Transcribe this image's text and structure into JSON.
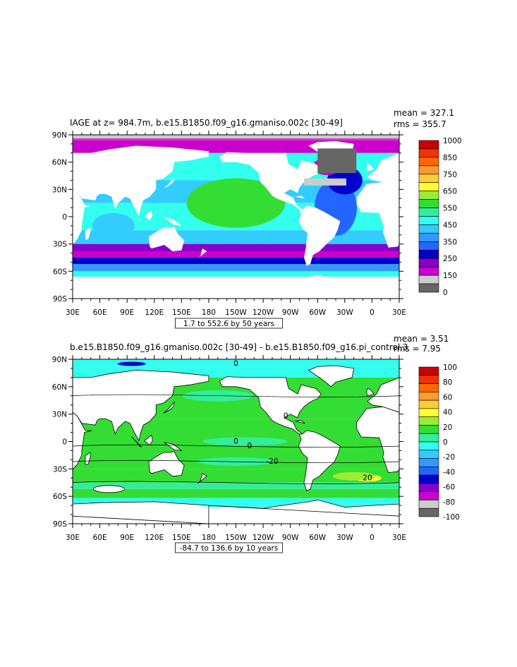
{
  "chart_data": [
    {
      "type": "heatmap",
      "title": "IAGE at z= 984.7m, b.e15.B1850.f09_g16.gmaniso.002c [30-49]",
      "stats": {
        "mean": "mean = 327.1",
        "rms": "rms = 355.7"
      },
      "x_ticks": [
        "30E",
        "60E",
        "90E",
        "120E",
        "150E",
        "180",
        "150W",
        "120W",
        "90W",
        "60W",
        "30W",
        "0",
        "30E"
      ],
      "y_ticks": [
        "90N",
        "60N",
        "30N",
        "0",
        "30S",
        "60S",
        "90S"
      ],
      "xlim": [
        30,
        390
      ],
      "ylim": [
        -90,
        90
      ],
      "range_note": "1.7 to 552.6 by 50 years",
      "colorbar": {
        "labels": [
          "1000",
          "850",
          "750",
          "650",
          "550",
          "450",
          "350",
          "250",
          "150",
          "0"
        ],
        "colors": [
          "#cc0000",
          "#ee3300",
          "#ff6600",
          "#ff9933",
          "#ffcc33",
          "#ffff33",
          "#99ee33",
          "#33dd33",
          "#33ee99",
          "#33ffee",
          "#33ccff",
          "#3399ff",
          "#2266ff",
          "#0000cc",
          "#8800cc",
          "#cc00cc",
          "#cccccc",
          "#666666"
        ]
      }
    },
    {
      "type": "heatmap",
      "title": "b.e15.B1850.f09_g16.gmaniso.002c [30-49] - b.e15.B1850.f09_g16.pi_control.3",
      "stats": {
        "mean": "mean = 3.51",
        "rms": "rms = 7.95"
      },
      "x_ticks": [
        "30E",
        "60E",
        "90E",
        "120E",
        "150E",
        "180",
        "150W",
        "120W",
        "90W",
        "60W",
        "30W",
        "0",
        "30E"
      ],
      "y_ticks": [
        "90N",
        "60N",
        "30N",
        "0",
        "30S",
        "60S",
        "90S"
      ],
      "xlim": [
        30,
        390
      ],
      "ylim": [
        -90,
        90
      ],
      "range_note": "-84.7 to 136.6 by 10 years",
      "colorbar": {
        "labels": [
          "100",
          "80",
          "60",
          "40",
          "20",
          "0",
          "-20",
          "-40",
          "-60",
          "-80",
          "-100"
        ],
        "colors": [
          "#cc0000",
          "#ee3300",
          "#ff6600",
          "#ff9933",
          "#ffcc33",
          "#ffff33",
          "#99ee33",
          "#33dd33",
          "#33ee99",
          "#33ffee",
          "#33ccff",
          "#3399ff",
          "#2266ff",
          "#0000cc",
          "#8800cc",
          "#cc00cc",
          "#cccccc",
          "#666666"
        ]
      },
      "contour_labels": [
        "0",
        "0",
        "0",
        "-20",
        "0",
        "20"
      ]
    }
  ]
}
